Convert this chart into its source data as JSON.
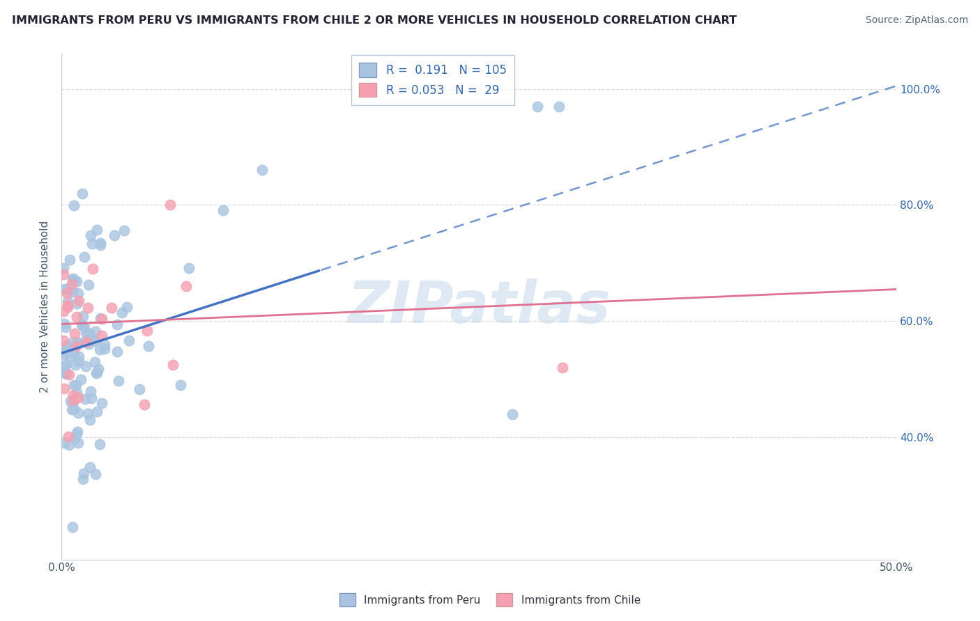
{
  "title": "IMMIGRANTS FROM PERU VS IMMIGRANTS FROM CHILE 2 OR MORE VEHICLES IN HOUSEHOLD CORRELATION CHART",
  "source": "Source: ZipAtlas.com",
  "ylabel": "2 or more Vehicles in Household",
  "xlim": [
    0.0,
    0.5
  ],
  "ylim": [
    0.19,
    1.06
  ],
  "legend_peru_r": "0.191",
  "legend_peru_n": "105",
  "legend_chile_r": "0.053",
  "legend_chile_n": "29",
  "peru_color": "#a8c4e0",
  "chile_color": "#f4a0b0",
  "peru_line_color": "#4472c4",
  "chile_line_color": "#e07090",
  "watermark": "ZIPatlas",
  "peru_intercept": 0.545,
  "peru_slope": 0.92,
  "chile_intercept": 0.595,
  "chile_slope": 0.12,
  "trend_solid_end": 0.155,
  "ytick_vals": [
    0.4,
    0.6,
    0.8,
    1.0
  ],
  "ytick_labels": [
    "40.0%",
    "60.0%",
    "80.0%",
    "100.0%"
  ],
  "xtick_vals": [
    0.0,
    0.05,
    0.1,
    0.15,
    0.2,
    0.25,
    0.3,
    0.35,
    0.4,
    0.45,
    0.5
  ],
  "grid_color": "#dddddd",
  "background_color": "#ffffff"
}
